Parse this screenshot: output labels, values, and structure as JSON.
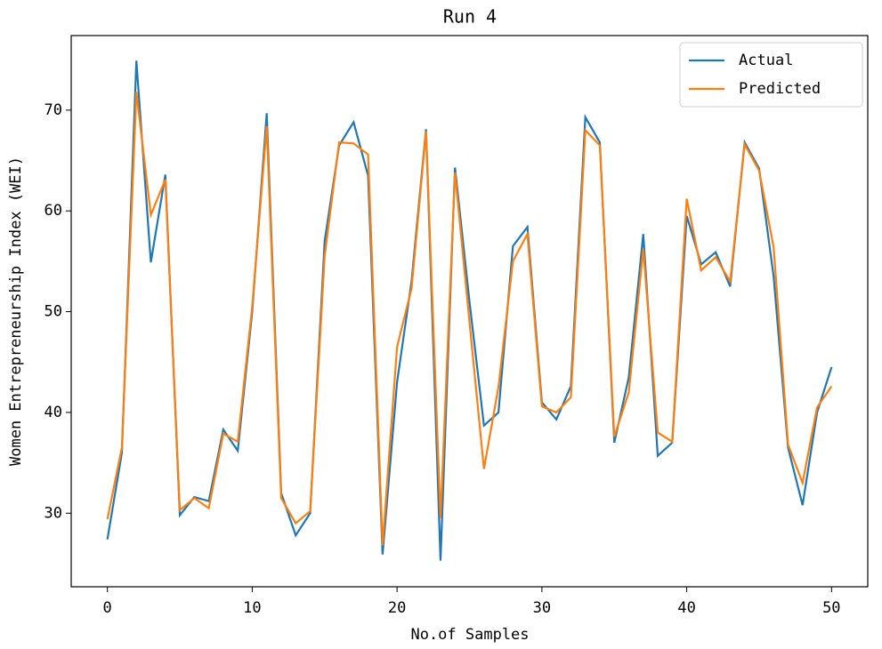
{
  "chart_data": {
    "type": "line",
    "title": "Run 4",
    "xlabel": "No.of Samples",
    "ylabel": "Women Entrepreneurship Index (WEI)",
    "x": [
      0,
      1,
      2,
      3,
      4,
      5,
      6,
      7,
      8,
      9,
      10,
      11,
      12,
      13,
      14,
      15,
      16,
      17,
      18,
      19,
      20,
      21,
      22,
      23,
      24,
      25,
      26,
      27,
      28,
      29,
      30,
      31,
      32,
      33,
      34,
      35,
      36,
      37,
      38,
      39,
      40,
      41,
      42,
      43,
      44,
      45,
      46,
      47,
      48,
      49,
      50
    ],
    "series": [
      {
        "name": "Actual",
        "color": "#1f77b4",
        "values": [
          27.4,
          36,
          74.9,
          54.9,
          63.6,
          29.8,
          31.6,
          31.2,
          38.3,
          36.2,
          50,
          69.7,
          32,
          27.8,
          30,
          57,
          66.5,
          68.8,
          63.5,
          25.9,
          43,
          53,
          68.1,
          25.3,
          64.3,
          51,
          38.7,
          40,
          56.5,
          58.4,
          41,
          39.3,
          42.6,
          69.3,
          66.8,
          37,
          43.5,
          57.7,
          35.7,
          37,
          59.5,
          54.7,
          55.9,
          52.5,
          66.8,
          64.2,
          53.5,
          36.5,
          30.8,
          40,
          44.5
        ]
      },
      {
        "name": "Predicted",
        "color": "#ff7f0e",
        "values": [
          29.4,
          36.5,
          71.8,
          59.6,
          63.1,
          30.3,
          31.5,
          30.5,
          37.9,
          37.1,
          50.5,
          68.4,
          31.5,
          29,
          30.2,
          55.5,
          66.8,
          66.7,
          65.6,
          26.8,
          46.5,
          52.3,
          67.9,
          29.5,
          63.8,
          49,
          34.4,
          42.5,
          55,
          57.7,
          40.6,
          40,
          41.5,
          68,
          66.5,
          37.6,
          42,
          56.2,
          38,
          37.1,
          61.2,
          54.1,
          55.4,
          53,
          66.6,
          64,
          56.4,
          36.8,
          33,
          40.5,
          42.6
        ]
      }
    ],
    "xlim": [
      -2.5,
      52.5
    ],
    "ylim": [
      22.7,
      77.4
    ],
    "xticks": [
      0,
      10,
      20,
      30,
      40,
      50
    ],
    "yticks": [
      30,
      40,
      50,
      60,
      70
    ],
    "legend": "upper right"
  }
}
